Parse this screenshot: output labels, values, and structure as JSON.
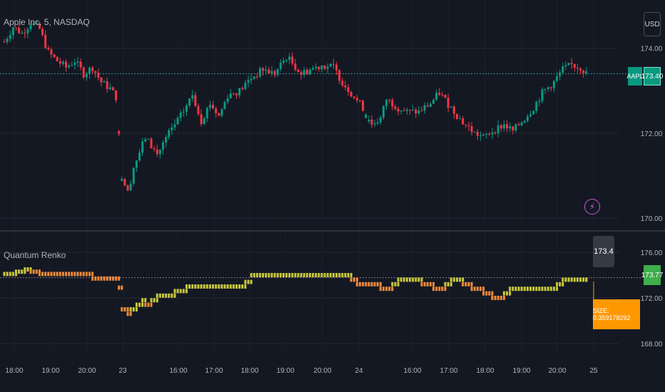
{
  "header": {
    "symbol_label": "Apple Inc, 5, NASDAQ",
    "currency": "USD"
  },
  "price": {
    "symbol_tag": "AAPL",
    "last": "173.40"
  },
  "indicator": {
    "name": "Quantum Renko",
    "box_value": "173.4",
    "last_tag": "173.77",
    "size_label": "SIZE: 0.359178292"
  },
  "icons": {
    "alert": "lightning-icon"
  },
  "colors": {
    "background": "#141823",
    "up": "#089981",
    "down": "#f23645",
    "renko_up": "#c9c83a",
    "renko_down": "#f08a3a",
    "last_line": "#2a9d8f",
    "tag_green": "#089981",
    "tag_ind": "#3fae4b",
    "size_box": "#ff9800"
  },
  "chart_data": [
    {
      "type": "candlestick",
      "title": "Apple Inc, 5, NASDAQ",
      "y_ticks": [
        "174.00",
        "172.00",
        "170.00"
      ],
      "ylim": [
        169.8,
        175.0
      ],
      "last_price": 173.4,
      "grid": true,
      "close_trend": [
        {
          "x": 0,
          "y": 174.15
        },
        {
          "x": 3,
          "y": 174.5
        },
        {
          "x": 6,
          "y": 174.35
        },
        {
          "x": 9,
          "y": 174.6
        },
        {
          "x": 12,
          "y": 174.45
        },
        {
          "x": 15,
          "y": 173.9
        },
        {
          "x": 18,
          "y": 173.7
        },
        {
          "x": 21,
          "y": 173.55
        },
        {
          "x": 24,
          "y": 173.7
        },
        {
          "x": 27,
          "y": 173.4
        },
        {
          "x": 30,
          "y": 173.55
        },
        {
          "x": 33,
          "y": 173.2
        },
        {
          "x": 36,
          "y": 173.05
        },
        {
          "x": 38,
          "y": 172.85
        },
        {
          "x": 40,
          "y": 171.0
        },
        {
          "x": 42,
          "y": 170.6
        },
        {
          "x": 44,
          "y": 171.2
        },
        {
          "x": 48,
          "y": 171.9
        },
        {
          "x": 52,
          "y": 171.5
        },
        {
          "x": 56,
          "y": 172.0
        },
        {
          "x": 60,
          "y": 172.4
        },
        {
          "x": 64,
          "y": 172.9
        },
        {
          "x": 67,
          "y": 172.3
        },
        {
          "x": 70,
          "y": 172.7
        },
        {
          "x": 73,
          "y": 172.4
        },
        {
          "x": 76,
          "y": 172.9
        },
        {
          "x": 80,
          "y": 173.0
        },
        {
          "x": 84,
          "y": 173.3
        },
        {
          "x": 88,
          "y": 173.5
        },
        {
          "x": 92,
          "y": 173.4
        },
        {
          "x": 96,
          "y": 173.8
        },
        {
          "x": 98,
          "y": 173.65
        },
        {
          "x": 101,
          "y": 173.4
        },
        {
          "x": 104,
          "y": 173.5
        },
        {
          "x": 108,
          "y": 173.6
        },
        {
          "x": 112,
          "y": 173.55
        },
        {
          "x": 115,
          "y": 173.2
        },
        {
          "x": 118,
          "y": 172.95
        },
        {
          "x": 122,
          "y": 172.6
        },
        {
          "x": 125,
          "y": 172.2
        },
        {
          "x": 128,
          "y": 172.35
        },
        {
          "x": 130,
          "y": 172.8
        },
        {
          "x": 134,
          "y": 172.6
        },
        {
          "x": 137,
          "y": 172.5
        },
        {
          "x": 141,
          "y": 172.5
        },
        {
          "x": 145,
          "y": 172.7
        },
        {
          "x": 148,
          "y": 172.95
        },
        {
          "x": 152,
          "y": 172.6
        },
        {
          "x": 156,
          "y": 172.25
        },
        {
          "x": 160,
          "y": 172.0
        },
        {
          "x": 163,
          "y": 171.9
        },
        {
          "x": 166,
          "y": 172.05
        },
        {
          "x": 170,
          "y": 172.2
        },
        {
          "x": 173,
          "y": 172.05
        },
        {
          "x": 177,
          "y": 172.35
        },
        {
          "x": 180,
          "y": 172.6
        },
        {
          "x": 183,
          "y": 172.95
        },
        {
          "x": 187,
          "y": 173.2
        },
        {
          "x": 190,
          "y": 173.5
        },
        {
          "x": 193,
          "y": 173.6
        },
        {
          "x": 196,
          "y": 173.55
        },
        {
          "x": 198,
          "y": 173.4
        }
      ]
    },
    {
      "type": "line",
      "series": [
        {
          "name": "Quantum Renko",
          "style": "renko-steps"
        }
      ],
      "y_ticks": [
        "176.00",
        "172.00",
        "168.00"
      ],
      "ylim": [
        167.5,
        177.5
      ],
      "x_tick_labels": [
        "18:00",
        "19:00",
        "20:00",
        "23",
        "16:00",
        "17:00",
        "18:00",
        "19:00",
        "20:00",
        "24",
        "16:00",
        "17:00",
        "18:00",
        "19:00",
        "20:00",
        "25"
      ],
      "steps": [
        {
          "x": 0,
          "y": 174.1
        },
        {
          "x": 4,
          "y": 174.3
        },
        {
          "x": 7,
          "y": 174.5
        },
        {
          "x": 9,
          "y": 174.3
        },
        {
          "x": 12,
          "y": 174.1
        },
        {
          "x": 30,
          "y": 173.7
        },
        {
          "x": 39,
          "y": 172.9
        },
        {
          "x": 40,
          "y": 171.0
        },
        {
          "x": 42,
          "y": 170.6
        },
        {
          "x": 43,
          "y": 171.0
        },
        {
          "x": 45,
          "y": 171.4
        },
        {
          "x": 47,
          "y": 171.8
        },
        {
          "x": 48,
          "y": 171.4
        },
        {
          "x": 50,
          "y": 171.8
        },
        {
          "x": 52,
          "y": 172.2
        },
        {
          "x": 58,
          "y": 172.6
        },
        {
          "x": 62,
          "y": 173.0
        },
        {
          "x": 82,
          "y": 173.4
        },
        {
          "x": 84,
          "y": 174.0
        },
        {
          "x": 118,
          "y": 173.6
        },
        {
          "x": 120,
          "y": 173.2
        },
        {
          "x": 128,
          "y": 172.8
        },
        {
          "x": 132,
          "y": 173.2
        },
        {
          "x": 134,
          "y": 173.6
        },
        {
          "x": 142,
          "y": 173.2
        },
        {
          "x": 146,
          "y": 172.8
        },
        {
          "x": 150,
          "y": 173.2
        },
        {
          "x": 152,
          "y": 173.6
        },
        {
          "x": 156,
          "y": 173.2
        },
        {
          "x": 159,
          "y": 172.8
        },
        {
          "x": 163,
          "y": 172.4
        },
        {
          "x": 166,
          "y": 172.0
        },
        {
          "x": 170,
          "y": 172.4
        },
        {
          "x": 172,
          "y": 172.8
        },
        {
          "x": 188,
          "y": 173.2
        },
        {
          "x": 190,
          "y": 173.6
        },
        {
          "x": 198,
          "y": 173.6
        }
      ]
    }
  ]
}
